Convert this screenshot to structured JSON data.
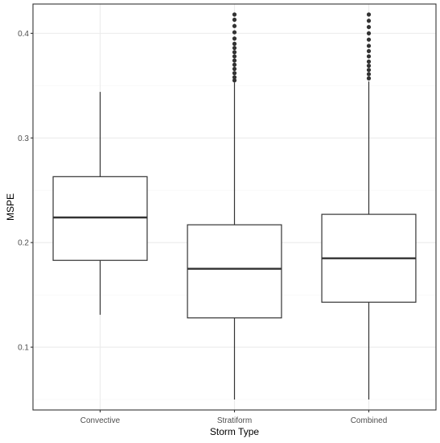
{
  "chart_data": {
    "type": "boxplot",
    "xlabel": "Storm Type",
    "ylabel": "MSPE",
    "ylim": [
      0.04,
      0.428
    ],
    "yticks": [
      0.1,
      0.2,
      0.3,
      0.4
    ],
    "ytick_labels": [
      "0.1",
      "0.2",
      "0.3",
      "0.4"
    ],
    "grid": true,
    "categories": [
      "Convective",
      "Stratiform",
      "Combined"
    ],
    "boxes": [
      {
        "category": "Convective",
        "whisker_low": 0.131,
        "q1": 0.183,
        "median": 0.224,
        "q3": 0.263,
        "whisker_high": 0.344,
        "outliers": []
      },
      {
        "category": "Stratiform",
        "whisker_low": 0.05,
        "q1": 0.128,
        "median": 0.175,
        "q3": 0.217,
        "whisker_high": 0.353,
        "outliers": [
          0.355,
          0.358,
          0.362,
          0.366,
          0.37,
          0.374,
          0.378,
          0.382,
          0.386,
          0.39,
          0.395,
          0.401,
          0.407,
          0.413,
          0.418
        ]
      },
      {
        "category": "Combined",
        "whisker_low": 0.05,
        "q1": 0.143,
        "median": 0.185,
        "q3": 0.227,
        "whisker_high": 0.354,
        "outliers": [
          0.357,
          0.361,
          0.365,
          0.369,
          0.373,
          0.378,
          0.383,
          0.388,
          0.394,
          0.4,
          0.406,
          0.412,
          0.418
        ]
      }
    ],
    "colors": {
      "box_fill": "#ffffff",
      "box_stroke": "#333333",
      "outlier": "#333333",
      "grid_major": "#ebebeb",
      "grid_minor": "#f5f5f5",
      "panel_border": "#333333"
    }
  }
}
